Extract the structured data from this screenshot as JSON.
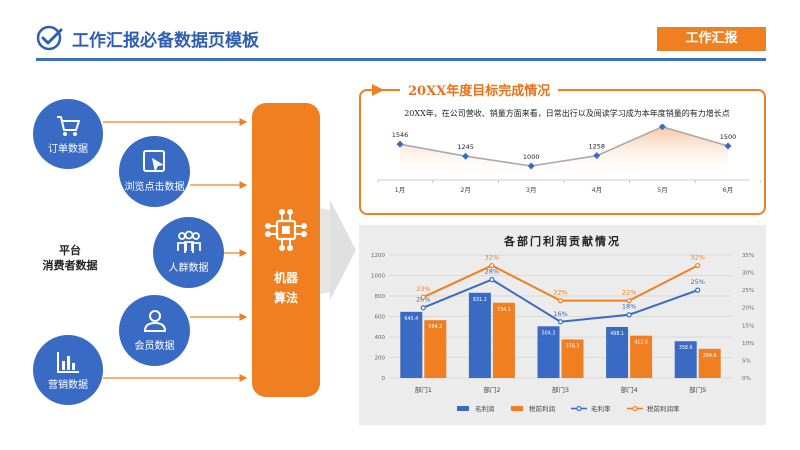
{
  "header": {
    "title": "工作汇报必备数据页模板",
    "tag": "工作汇报"
  },
  "left_diagram": {
    "nodes": [
      {
        "label": "订单数据",
        "icon": "cart-icon"
      },
      {
        "label": "浏览点击数据",
        "icon": "cursor-icon"
      },
      {
        "label": "人群数据",
        "icon": "people-icon"
      },
      {
        "label": "会员数据",
        "icon": "user-icon"
      },
      {
        "label": "营销数据",
        "icon": "bar-chart-icon"
      }
    ],
    "platform_line1": "平台",
    "platform_line2": "消费者数据",
    "machine_line1": "机器",
    "machine_line2": "算法",
    "machine_icon": "chip-icon"
  },
  "colors": {
    "blue": "#3a6bc4",
    "orange": "#f07f22"
  },
  "chart_data": [
    {
      "type": "area",
      "title": "20XX年度目标完成情况",
      "subtitle": "20XX年，在公司营收、销量方面来看，日常出行以及阅读学习成为本年度销量的有力增长点",
      "categories": [
        "1月",
        "2月",
        "3月",
        "4月",
        "5月",
        "6月"
      ],
      "values": [
        1546,
        1245,
        1000,
        1258,
        1980,
        1500
      ],
      "grid": false
    },
    {
      "type": "bar",
      "title": "各部门利润贡献情况",
      "categories": [
        "部门1",
        "部门2",
        "部门3",
        "部门4",
        "部门5"
      ],
      "series": [
        {
          "name": "毛利润",
          "kind": "bar",
          "axis": "left",
          "values": [
            645.4,
            831.2,
            504.3,
            498.1,
            358.6
          ]
        },
        {
          "name": "税前利润",
          "kind": "bar",
          "axis": "left",
          "values": [
            564.2,
            734.1,
            376.3,
            412.8,
            284.6
          ]
        },
        {
          "name": "毛利率",
          "kind": "line",
          "axis": "right",
          "values": [
            20,
            28,
            16,
            18,
            25
          ],
          "labels": [
            "20%",
            "28%",
            "16%",
            "18%",
            "25%"
          ]
        },
        {
          "name": "税前利润率",
          "kind": "line",
          "axis": "right",
          "values": [
            23,
            32,
            22,
            22,
            32
          ],
          "labels": [
            "23%",
            "32%",
            "22%",
            "22%",
            "32%"
          ]
        }
      ],
      "ylim": [
        0,
        1200
      ],
      "yticks": [
        "0",
        "200",
        "400",
        "600",
        "800",
        "1000",
        "1200"
      ],
      "y2lim": [
        0,
        35
      ],
      "y2ticks": [
        "0%",
        "5%",
        "10%",
        "15%",
        "20%",
        "25%",
        "30%",
        "35%"
      ],
      "grid": true,
      "legend": "bottom"
    }
  ]
}
